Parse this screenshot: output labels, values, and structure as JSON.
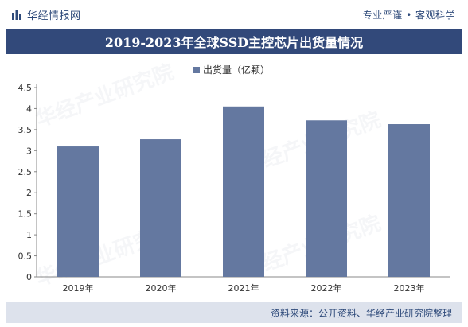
{
  "header": {
    "brand": "华经情报网",
    "tagline": "专业严谨 • 客观科学"
  },
  "title": "2019-2023年全球SSD主控芯片出货量情况",
  "watermark": "华经产业研究院",
  "source": "资料来源：公开资料、华经产业研究院整理",
  "colors": {
    "bar": "#6478a0",
    "title_bg": "#32497a",
    "footer_bg": "#dde2ec",
    "text": "#2e4a7a"
  },
  "chart_data": {
    "type": "bar",
    "categories": [
      "2019年",
      "2020年",
      "2021年",
      "2022年",
      "2023年"
    ],
    "series": [
      {
        "name": "出货量（亿颗）",
        "values": [
          3.1,
          3.27,
          4.05,
          3.72,
          3.63
        ]
      }
    ],
    "ylim": [
      0,
      4.5
    ],
    "yticks": [
      "0",
      "0.5",
      "1",
      "1.5",
      "2",
      "2.5",
      "3",
      "3.5",
      "4",
      "4.5"
    ],
    "grid": false,
    "legend_position": "top-center"
  }
}
